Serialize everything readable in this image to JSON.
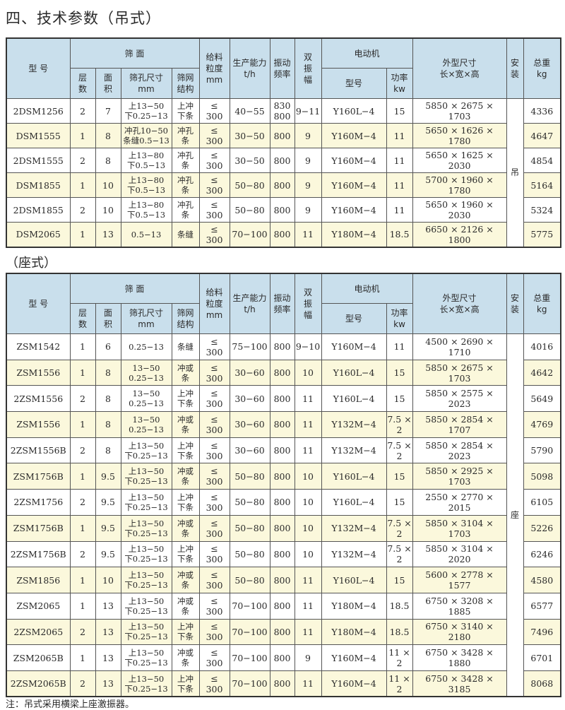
{
  "title": "四、技术参数（吊式）",
  "subtitle": "（座式）",
  "note": "注：吊式采用横梁上座激振器。",
  "headers": {
    "model": "型  号",
    "screen": "筛  面",
    "layers": "层\n数",
    "area": "面\n积",
    "aperture": "筛孔尺寸\nmm",
    "mesh": "筛网\n结构",
    "feed": "给料\n粒度\nmm",
    "capacity": "生产能力\nt/h",
    "freq": "振动\n频率",
    "amplitude": "双\n振\n幅",
    "motor": "电动机",
    "motor_model": "型号",
    "power": "功率\nkw",
    "dims": "外型尺寸\n长×宽×高",
    "mount": "安\n装",
    "weight": "总重\nkg"
  },
  "hanging": {
    "mount": "吊",
    "rows": [
      [
        "2DSM1256",
        "2",
        "7",
        "上13−50\n下0.25−13",
        "上冲\n下条",
        "≤\n300",
        "40−55",
        "830\n800",
        "9−11",
        "Y160L−4",
        "15",
        "5850 × 2675 × 1703",
        "4336"
      ],
      [
        "DSM1555",
        "1",
        "8",
        "冲孔10−50\n条缝0.5−13",
        "冲孔\n条",
        "≤\n300",
        "30−50",
        "800",
        "9",
        "Y160M−4",
        "11",
        "5650 × 1626 × 1780",
        "4647"
      ],
      [
        "2DSM1555",
        "2",
        "8",
        "上13−80\n下0.5−13",
        "冲孔\n条",
        "≤\n300",
        "30−50",
        "800",
        "9",
        "Y160M−4",
        "11",
        "5650 × 1625 × 2030",
        "4854"
      ],
      [
        "DSM1855",
        "1",
        "10",
        "上13−80\n下0.5−13",
        "冲孔\n条",
        "≤\n300",
        "50−80",
        "800",
        "9",
        "Y160M−4",
        "11",
        "5700 × 1960 × 1780",
        "5164"
      ],
      [
        "2DSM1855",
        "2",
        "10",
        "上13−80\n下0.5−13",
        "冲孔\n条",
        "≤\n300",
        "50−80",
        "800",
        "9",
        "Y160M−4",
        "11",
        "5650 × 1960 × 2030",
        "5324"
      ],
      [
        "DSM2065",
        "1",
        "13",
        "0.5−13",
        "条缝",
        "≤\n300",
        "70−100",
        "800",
        "11",
        "Y180M−4",
        "18.5",
        "6650 × 2126 × 1800",
        "5775"
      ]
    ]
  },
  "seated": {
    "mount": "座",
    "rows": [
      [
        "ZSM1542",
        "1",
        "6",
        "0.25−13",
        "条缝",
        "≤\n300",
        "75−100",
        "800",
        "9−10",
        "Y160M−4",
        "11",
        "4500 × 2690 × 1710",
        "4016"
      ],
      [
        "ZSM1556",
        "1",
        "8",
        "13−50\n0.25−13",
        "冲或\n条",
        "≤\n300",
        "30−60",
        "800",
        "10",
        "Y160L−4",
        "15",
        "5850 × 2675 × 1703",
        "4642"
      ],
      [
        "2ZSM1556",
        "2",
        "8",
        "13−50\n0.25−13",
        "上冲\n下条",
        "≤\n300",
        "30−60",
        "800",
        "11",
        "Y160L−4",
        "15",
        "5850 × 2575 × 2023",
        "5649"
      ],
      [
        "ZSM1556",
        "1",
        "8",
        "13−50\n0.25−13",
        "冲或\n条",
        "≤\n300",
        "30−60",
        "800",
        "11",
        "Y132M−4",
        "7.5 × 2",
        "5850 × 2854 × 1707",
        "4769"
      ],
      [
        "2ZSM1556B",
        "2",
        "8",
        "上13−50\n下0.25−13",
        "上冲\n下条",
        "≤\n300",
        "30−60",
        "800",
        "11",
        "Y132M−4",
        "7.5 × 2",
        "5850 × 2854 × 2023",
        "5790"
      ],
      [
        "ZSM1756B",
        "1",
        "9.5",
        "上13−50\n下0.25−13",
        "冲或\n条",
        "≤\n300",
        "50−80",
        "800",
        "10",
        "Y160L−4",
        "15",
        "5850 × 2925 × 1703",
        "5098"
      ],
      [
        "2ZSM1756",
        "2",
        "9.5",
        "上13−50\n下0.25−13",
        "上冲\n下条",
        "≤\n300",
        "50−80",
        "800",
        "10",
        "Y160L−4",
        "15",
        "2550 × 2770 × 2015",
        "6105"
      ],
      [
        "ZSM1756B",
        "1",
        "9.5",
        "上13−50\n下0.25−13",
        "冲或\n条",
        "≤\n300",
        "50−80",
        "800",
        "10",
        "Y132M−4",
        "7.5 × 2",
        "5850 × 3104 × 1703",
        "5226"
      ],
      [
        "2ZSM1756B",
        "2",
        "9.5",
        "上13−50\n下0.25−13",
        "上冲\n下条",
        "≤\n300",
        "50−80",
        "800",
        "10",
        "Y132M−4",
        "7.5 × 2",
        "5850 × 3104 × 2020",
        "6246"
      ],
      [
        "ZSM1856",
        "1",
        "10",
        "上13−50\n下0.25−13",
        "冲或\n条",
        "≤\n300",
        "50−80",
        "800",
        "11",
        "Y160L−4",
        "15",
        "5600 × 2778 × 1577",
        "4580"
      ],
      [
        "ZSM2065",
        "1",
        "13",
        "上13−50\n下0.25−13",
        "冲或\n条",
        "≤\n300",
        "70−100",
        "800",
        "11",
        "Y180M−4",
        "18.5",
        "6750 × 3208 × 1885",
        "6577"
      ],
      [
        "2ZSM2065",
        "2",
        "13",
        "上13−50\n下0.25−13",
        "上冲\n下条",
        "≤\n300",
        "70−100",
        "800",
        "11",
        "Y180M−4",
        "18.5",
        "6750 × 3140 × 2180",
        "7496"
      ],
      [
        "ZSM2065B",
        "1",
        "13",
        "上13−50\n下0.25−13",
        "冲或\n条",
        "≤\n300",
        "70−100",
        "800",
        "9",
        "Y160M−4",
        "11 × 2",
        "6750 × 3428 × 1880",
        "6701"
      ],
      [
        "2ZSM2065B",
        "2",
        "13",
        "上13−50\n下0.25−13",
        "上冲\n下条",
        "≤\n300",
        "70−100",
        "800",
        "11",
        "Y160M−4",
        "11 × 2",
        "6750 × 3428 × 3185",
        "8068"
      ]
    ]
  },
  "colors": {
    "header_bg": "#c9dfec",
    "row_alt": "#fbf8dc",
    "row": "#ffffff"
  }
}
